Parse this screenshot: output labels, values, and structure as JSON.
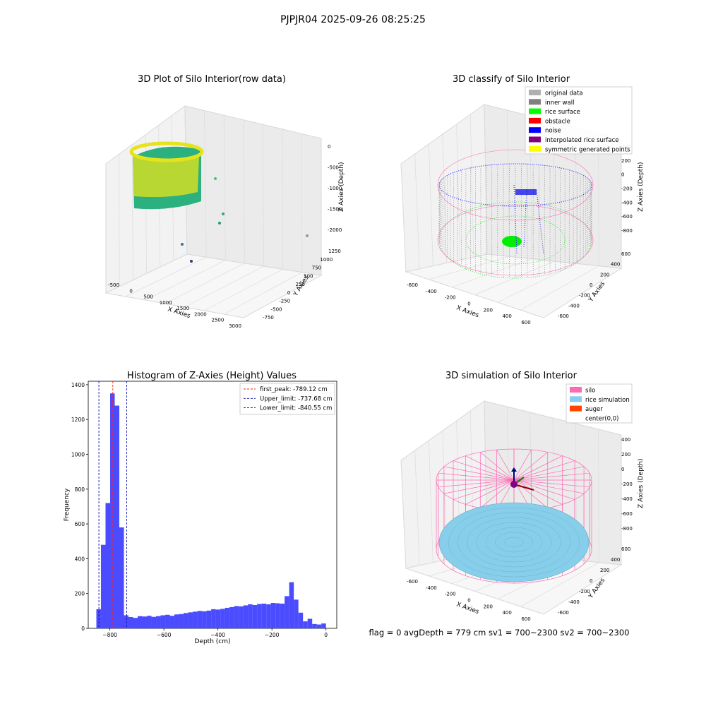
{
  "suptitle": "PJPJR04 2025-09-26 08:25:25",
  "status_line": "flag = 0     avgDepth = 779 cm  sv1 = 700~2300  sv2 = 700~2300",
  "colors": {
    "hist_bar": "#4b4bff",
    "peak_line": "#ff2020",
    "limit_line": "#1010aa",
    "silo": "#ff69b4",
    "rice_sim": "#87ceeb",
    "auger": "#ff4500",
    "original": "#b0b0b0",
    "inner_wall": "#808080",
    "rice_surface": "#00ff00",
    "obstacle": "#ff0000",
    "noise": "#0000ff",
    "interp": "#800080",
    "symmetric": "#ffff00"
  },
  "chart_data": [
    {
      "type": "scatter3d",
      "title": "3D Plot of Silo Interior(row data)",
      "xlabel": "X Axies",
      "ylabel": "Y Axies",
      "zlabel": "Z Axies (Depth)",
      "xticks": [
        "-500",
        "0",
        "500",
        "1000",
        "1500",
        "2000",
        "2500",
        "3000"
      ],
      "yticks": [
        "-750",
        "-500",
        "-250",
        "0",
        "250",
        "500",
        "750",
        "1000",
        "1250"
      ],
      "zticks": [
        "-2000",
        "-1500",
        "-1000",
        "-500",
        "0"
      ]
    },
    {
      "type": "scatter3d",
      "title": "3D classify of Silo Interior",
      "xlabel": "X Axies",
      "ylabel": "Y Axies",
      "zlabel": "Z Axies (Depth)",
      "xticks": [
        "-600",
        "-400",
        "-200",
        "0",
        "200",
        "400",
        "600"
      ],
      "yticks": [
        "-600",
        "-400",
        "-200",
        "0",
        "200",
        "400",
        "600"
      ],
      "zticks": [
        "-800",
        "-600",
        "-400",
        "-200",
        "0",
        "200",
        "400"
      ],
      "legend": [
        "original data",
        "inner wall",
        "rice surface",
        "obstacle",
        "noise",
        "interpolated rice surface",
        "symmetric generated points"
      ],
      "legend_loc": "upper-right"
    },
    {
      "type": "bar",
      "title": "Histogram of Z-Axies (Height) Values",
      "xlabel": "Depth (cm)",
      "ylabel": "Frequency",
      "xlim": [
        -880,
        40
      ],
      "ylim": [
        0,
        1420
      ],
      "xticks": [
        -800,
        -600,
        -400,
        -200,
        0
      ],
      "yticks": [
        0,
        200,
        400,
        600,
        800,
        1000,
        1200,
        1400
      ],
      "bin_start": -850,
      "bin_width": 17,
      "values": [
        110,
        480,
        720,
        1350,
        1280,
        580,
        75,
        65,
        60,
        70,
        68,
        72,
        66,
        70,
        75,
        78,
        72,
        80,
        82,
        88,
        92,
        96,
        100,
        98,
        102,
        110,
        108,
        112,
        118,
        122,
        128,
        126,
        132,
        138,
        134,
        140,
        142,
        138,
        146,
        144,
        142,
        185,
        265,
        165,
        90,
        40,
        55,
        25,
        22,
        28
      ],
      "vlines": [
        {
          "x": -789.12,
          "label": "first_peak: -789.12 cm",
          "style": "peak"
        },
        {
          "x": -737.68,
          "label": "Upper_limit: -737.68 cm",
          "style": "limit"
        },
        {
          "x": -840.55,
          "label": "Lower_limit: -840.55 cm",
          "style": "limit"
        }
      ],
      "legend_loc": "upper-right"
    },
    {
      "type": "surface3d",
      "title": "3D simulation of Silo Interior",
      "xlabel": "X Axies",
      "ylabel": "Y Axies",
      "zlabel": "Z Axies (Depth)",
      "xticks": [
        "-600",
        "-400",
        "-200",
        "0",
        "200",
        "400",
        "600"
      ],
      "yticks": [
        "-600",
        "-400",
        "-200",
        "0",
        "200",
        "400",
        "600"
      ],
      "zticks": [
        "-800",
        "-600",
        "-400",
        "-200",
        "0",
        "200",
        "400"
      ],
      "legend": [
        "silo",
        "rice simulation",
        "auger",
        "center(0,0)"
      ],
      "legend_loc": "upper-right"
    }
  ]
}
